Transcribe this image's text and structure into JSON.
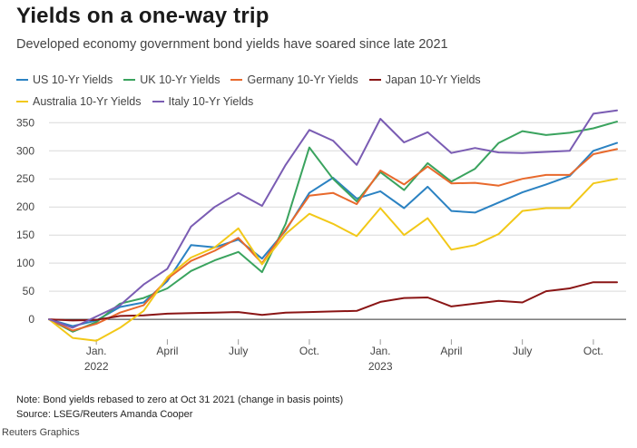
{
  "header": {
    "title": "Yields on a one-way trip",
    "subtitle": "Developed economy government bond yields have soared since late 2021"
  },
  "footer": {
    "note": "Note: Bond yields rebased to zero at Oct 31 2021 (change in basis points)",
    "source": "Source: LSEG/Reuters Amanda Cooper",
    "credit": "Reuters Graphics"
  },
  "chart_data": {
    "type": "line",
    "title": "Yields on a one-way trip",
    "subtitle": "Developed economy government bond yields have soared since late 2021",
    "xlabel": "",
    "ylabel": "",
    "x_range": [
      0,
      24
    ],
    "ylim": [
      -45,
      365
    ],
    "yticks": [
      0,
      50,
      100,
      150,
      200,
      250,
      300,
      350
    ],
    "xticks": [
      {
        "x": 2,
        "label": "Jan.",
        "year": "2022"
      },
      {
        "x": 5,
        "label": "April",
        "year": ""
      },
      {
        "x": 8,
        "label": "July",
        "year": ""
      },
      {
        "x": 11,
        "label": "Oct.",
        "year": ""
      },
      {
        "x": 14,
        "label": "Jan.",
        "year": "2023"
      },
      {
        "x": 17,
        "label": "April",
        "year": ""
      },
      {
        "x": 20,
        "label": "July",
        "year": ""
      },
      {
        "x": 23,
        "label": "Oct.",
        "year": ""
      }
    ],
    "grid": true,
    "legend_position": "top-left",
    "x": [
      0,
      1,
      2,
      3,
      4,
      5,
      6,
      7,
      8,
      9,
      10,
      11,
      12,
      13,
      14,
      15,
      16,
      17,
      18,
      19,
      20,
      21,
      22,
      23,
      24
    ],
    "series": [
      {
        "name": "US 10-Yr Yields",
        "color": "#2b82c2",
        "values": [
          0,
          -12,
          -2,
          22,
          30,
          68,
          132,
          128,
          142,
          108,
          158,
          225,
          252,
          215,
          228,
          198,
          236,
          193,
          190,
          208,
          226,
          240,
          255,
          300,
          314
        ]
      },
      {
        "name": "UK 10-Yr Yields",
        "color": "#3aa35e",
        "values": [
          0,
          -22,
          -5,
          28,
          38,
          55,
          86,
          105,
          120,
          84,
          170,
          306,
          250,
          210,
          262,
          230,
          278,
          245,
          268,
          314,
          335,
          328,
          332,
          340,
          352
        ]
      },
      {
        "name": "Germany 10-Yr Yields",
        "color": "#e8692c",
        "values": [
          0,
          -20,
          -8,
          12,
          25,
          72,
          104,
          122,
          145,
          100,
          160,
          220,
          225,
          205,
          265,
          240,
          272,
          242,
          243,
          238,
          250,
          257,
          257,
          294,
          303
        ]
      },
      {
        "name": "Japan 10-Yr Yields",
        "color": "#8a1515",
        "values": [
          0,
          -2,
          -1,
          6,
          7,
          10,
          11,
          12,
          13,
          8,
          12,
          13,
          14,
          15,
          31,
          38,
          39,
          23,
          28,
          33,
          30,
          50,
          55,
          66,
          66
        ]
      },
      {
        "name": "Australia 10-Yr Yields",
        "color": "#f2c818",
        "values": [
          0,
          -33,
          -38,
          -15,
          15,
          75,
          110,
          128,
          162,
          98,
          152,
          188,
          170,
          148,
          198,
          150,
          180,
          124,
          132,
          152,
          193,
          198,
          198,
          242,
          250
        ]
      },
      {
        "name": "Italy 10-Yr Yields",
        "color": "#7a5cb3",
        "values": [
          0,
          -15,
          5,
          25,
          62,
          90,
          165,
          200,
          225,
          202,
          275,
          337,
          318,
          275,
          357,
          315,
          333,
          296,
          305,
          297,
          296,
          298,
          300,
          366,
          372
        ]
      }
    ]
  }
}
